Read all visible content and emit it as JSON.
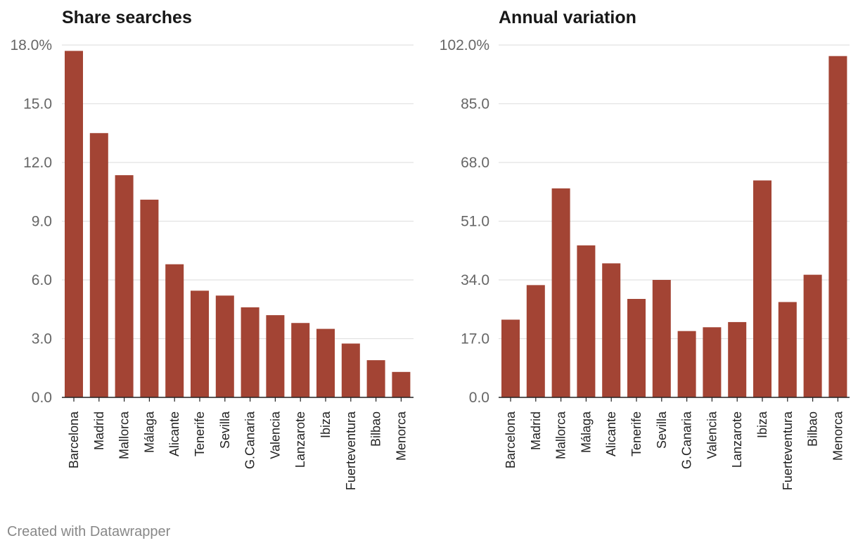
{
  "colors": {
    "bar": "#a34434",
    "grid": "#e2e2e2",
    "axis": "#222222",
    "tick_text": "#666666"
  },
  "chart_data": [
    {
      "type": "bar",
      "title": "Share searches",
      "categories": [
        "Barcelona",
        "Madrid",
        "Mallorca",
        "Málaga",
        "Alicante",
        "Tenerife",
        "Sevilla",
        "G.Canaria",
        "Valencia",
        "Lanzarote",
        "Ibiza",
        "Fuerteventura",
        "Bilbao",
        "Menorca"
      ],
      "values": [
        17.7,
        13.5,
        11.35,
        10.1,
        6.8,
        5.45,
        5.2,
        4.6,
        4.2,
        3.8,
        3.5,
        2.75,
        1.9,
        1.3
      ],
      "yticks": [
        0,
        3,
        6,
        9,
        12,
        15,
        18
      ],
      "ytick_labels": [
        "0.0",
        "3.0",
        "6.0",
        "9.0",
        "12.0",
        "15.0",
        "18.0%"
      ],
      "ylim": [
        0,
        18
      ],
      "xlabel": "",
      "ylabel": ""
    },
    {
      "type": "bar",
      "title": "Annual variation",
      "categories": [
        "Barcelona",
        "Madrid",
        "Mallorca",
        "Málaga",
        "Alicante",
        "Tenerife",
        "Sevilla",
        "G.Canaria",
        "Valencia",
        "Lanzarote",
        "Ibiza",
        "Fuerteventura",
        "Bilbao",
        "Menorca"
      ],
      "values": [
        22.5,
        32.5,
        60.5,
        44.0,
        38.8,
        28.5,
        34.0,
        19.2,
        20.3,
        21.8,
        62.8,
        27.6,
        35.5,
        98.8
      ],
      "yticks": [
        0,
        17,
        34,
        51,
        68,
        85,
        102
      ],
      "ytick_labels": [
        "0.0",
        "17.0",
        "34.0",
        "51.0",
        "68.0",
        "85.0",
        "102.0%"
      ],
      "ylim": [
        0,
        102
      ],
      "xlabel": "",
      "ylabel": ""
    }
  ],
  "footer": {
    "credit": "Created with Datawrapper"
  }
}
